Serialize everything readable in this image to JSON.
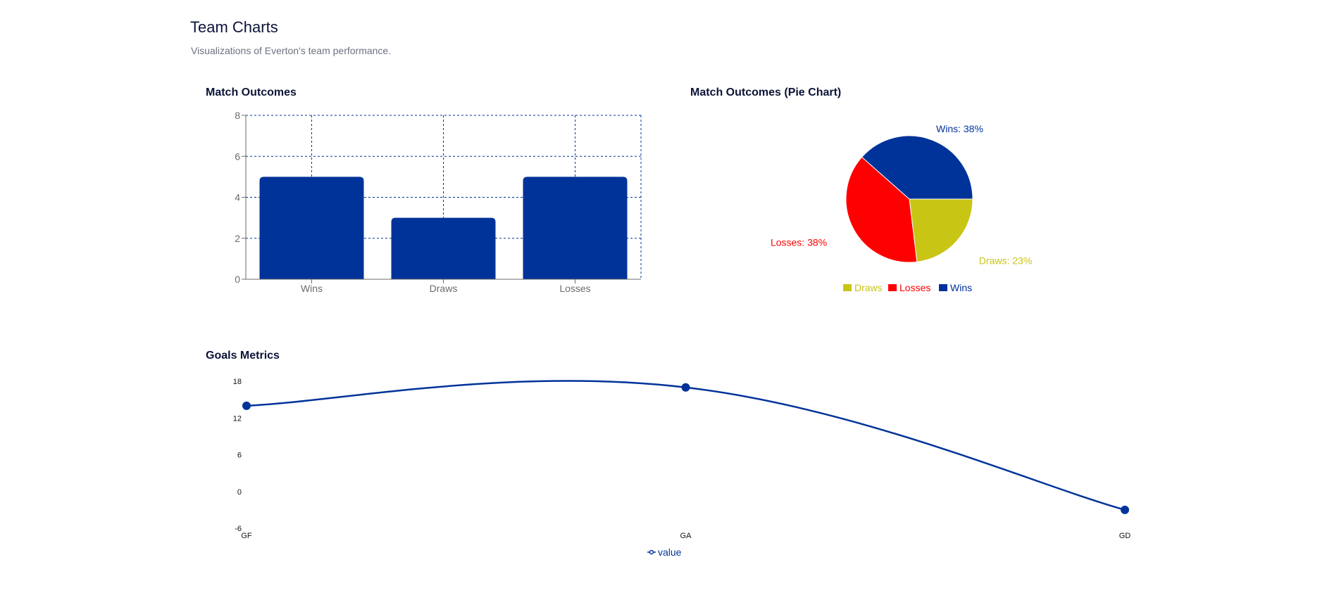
{
  "page": {
    "title": "Team Charts",
    "subtitle": "Visualizations of Everton's team performance."
  },
  "colors": {
    "primary": "#003399",
    "draws": "#c8c515",
    "losses": "#ff0000",
    "wins": "#003399",
    "axis": "#6b6b6b"
  },
  "chart_data": [
    {
      "id": "match-outcomes",
      "type": "bar",
      "title": "Match Outcomes",
      "categories": [
        "Wins",
        "Draws",
        "Losses"
      ],
      "values": [
        5,
        3,
        5
      ],
      "ylim": [
        0,
        8
      ],
      "yticks": [
        0,
        2,
        4,
        6,
        8
      ],
      "grid": true
    },
    {
      "id": "match-outcomes-pie",
      "type": "pie",
      "title": "Match Outcomes (Pie Chart)",
      "slices": [
        {
          "name": "Draws",
          "value": 3,
          "label": "Draws: 23%"
        },
        {
          "name": "Losses",
          "value": 5,
          "label": "Losses: 38%"
        },
        {
          "name": "Wins",
          "value": 5,
          "label": "Wins: 38%"
        }
      ],
      "legend": [
        "Draws",
        "Losses",
        "Wins"
      ],
      "legend_position": "bottom"
    },
    {
      "id": "goals-metrics",
      "type": "line",
      "title": "Goals Metrics",
      "categories": [
        "GF",
        "GA",
        "GD"
      ],
      "series": [
        {
          "name": "value",
          "values": [
            14,
            17,
            -3
          ]
        }
      ],
      "yticks": [
        -6,
        0,
        6,
        12,
        18
      ],
      "ylim": [
        -6,
        18
      ],
      "legend_position": "bottom"
    }
  ]
}
